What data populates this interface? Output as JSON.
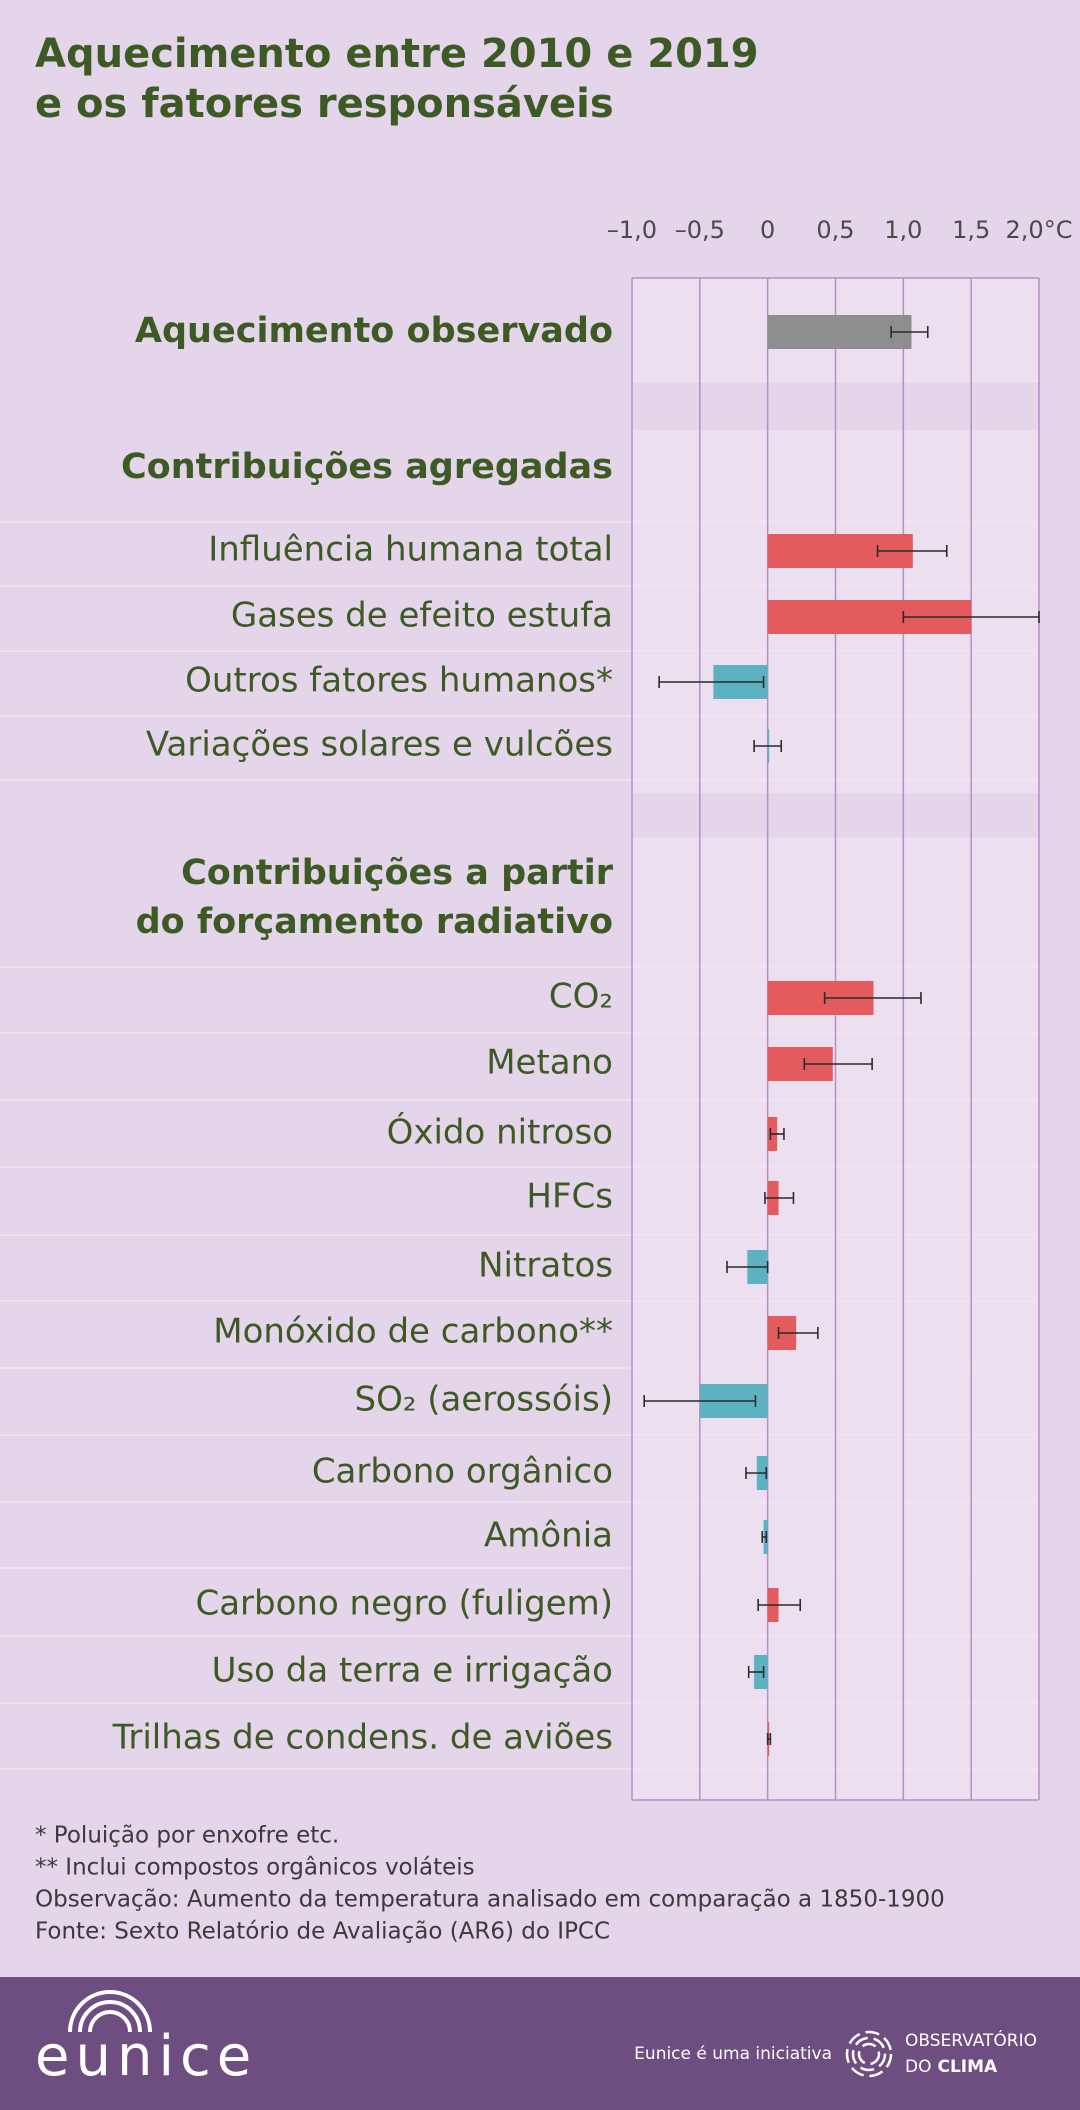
{
  "chart_data": {
    "type": "hbar_error",
    "title": [
      "Aquecimento entre 2010 e 2019",
      "e os fatores responsáveis"
    ],
    "section_titles": [
      [
        "Contribuições agregadas"
      ],
      [
        "Contribuições a partir",
        "do forçamento radiativo"
      ]
    ],
    "categories": [
      "Aquecimento observado",
      "Influência humana total",
      "Gases de efeito estufa",
      "Outros fatores humanos*",
      "Variações solares e vulcões",
      "CO₂",
      "Metano",
      "Óxido nitroso",
      "HFCs",
      "Nitratos",
      "Monóxido de carbono**",
      "SO₂ (aerossóis)",
      "Carbono orgânico",
      "Amônia",
      "Carbono negro (fuligem)",
      "Uso da terra e irrigação",
      "Trilhas de condens. de aviões"
    ],
    "values": [
      1.06,
      1.07,
      1.5,
      -0.4,
      0.0,
      0.78,
      0.48,
      0.07,
      0.08,
      -0.15,
      0.21,
      -0.5,
      -0.08,
      -0.03,
      0.08,
      -0.1,
      0.01
    ],
    "low": [
      0.91,
      0.81,
      1.0,
      -0.8,
      -0.1,
      0.42,
      0.27,
      0.02,
      -0.02,
      -0.3,
      0.08,
      -0.91,
      -0.16,
      -0.04,
      -0.07,
      -0.14,
      0.0
    ],
    "high": [
      1.18,
      1.32,
      2.0,
      -0.03,
      0.1,
      1.13,
      0.77,
      0.12,
      0.19,
      0.0,
      0.37,
      -0.09,
      -0.01,
      -0.01,
      0.24,
      -0.03,
      0.02
    ],
    "colors": [
      "#8e8e8e",
      "#e35b5d",
      "#e35b5d",
      "#5cb2c1",
      "#5cb2c1",
      "#e35b5d",
      "#e35b5d",
      "#e35b5d",
      "#e35b5d",
      "#5cb2c1",
      "#e35b5d",
      "#5cb2c1",
      "#5cb2c1",
      "#5cb2c1",
      "#e35b5d",
      "#5cb2c1",
      "#e35b5d"
    ],
    "xlim": [
      -1.0,
      2.0
    ],
    "xticks": [
      {
        "value": -1.0,
        "label": "–1,0"
      },
      {
        "value": -0.5,
        "label": "–0,5"
      },
      0,
      {
        "value": 0.5,
        "label": "0,5"
      },
      {
        "value": 1.0,
        "label": "1,0"
      },
      {
        "value": 1.5,
        "label": "1,5"
      },
      {
        "value": 2.0,
        "label": "2,0°C"
      }
    ],
    "grid": true,
    "footnotes": [
      "* Poluição por enxofre etc.",
      "** Inclui compostos orgânicos voláteis",
      "Observação: Aumento da temperatura analisado em comparação a 1850-1900",
      "Fonte: Sexto Relatório de Avaliação (AR6) do IPCC"
    ]
  },
  "footer": {
    "brand": "eunice",
    "tagline": "Eunice é uma iniciativa",
    "org_line1": "OBSERVATÓRIO",
    "org_do": "DO",
    "org_clima": "CLIMA"
  }
}
